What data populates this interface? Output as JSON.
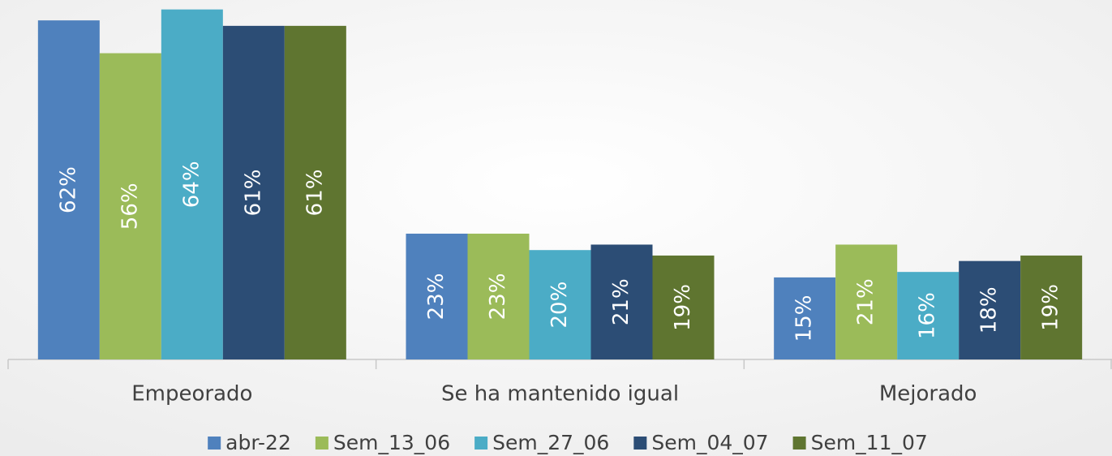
{
  "chart_data": {
    "type": "bar",
    "categories": [
      "Empeorado",
      "Se ha mantenido igual",
      "Mejorado"
    ],
    "series": [
      {
        "name": "abr-22",
        "color": "#4f81bd",
        "values": [
          62,
          23,
          15
        ],
        "value_labels": [
          "62%",
          "23%",
          "15%"
        ]
      },
      {
        "name": "Sem_13_06",
        "color": "#9bbb59",
        "values": [
          56,
          23,
          21
        ],
        "value_labels": [
          "56%",
          "23%",
          "21%"
        ]
      },
      {
        "name": "Sem_27_06",
        "color": "#4bacc6",
        "values": [
          64,
          20,
          16
        ],
        "value_labels": [
          "64%",
          "20%",
          "16%"
        ]
      },
      {
        "name": "Sem_04_07",
        "color": "#2c4d75",
        "values": [
          61,
          21,
          18
        ],
        "value_labels": [
          "61%",
          "21%",
          "18%"
        ]
      },
      {
        "name": "Sem_11_07",
        "color": "#5f7530",
        "values": [
          61,
          19,
          19
        ],
        "value_labels": [
          "61%",
          "19%",
          "19%"
        ]
      }
    ],
    "legend": "bottom"
  }
}
